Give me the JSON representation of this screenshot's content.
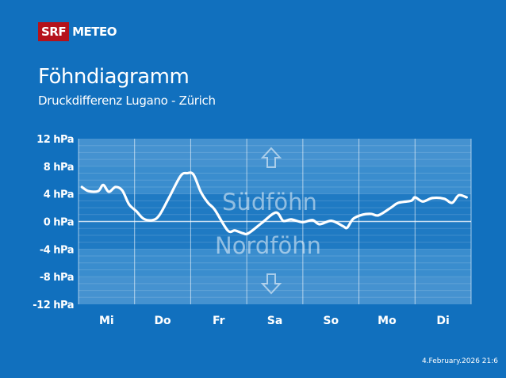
{
  "brand": {
    "srf": "SRF",
    "meteo": "METEO"
  },
  "header": {
    "title": "Föhndiagramm",
    "subtitle": "Druckdifferenz Lugano - Zürich"
  },
  "timestamp": "4.February.2026 21:6",
  "colors": {
    "background": "#1170be",
    "line": "#ffffff",
    "logo_red": "#b5121b"
  },
  "chart_data": {
    "type": "line",
    "title": "Föhndiagramm",
    "ylabel": "hPa",
    "ylim": [
      -12,
      12
    ],
    "yticks": [
      12,
      8,
      4,
      0,
      -4,
      -8,
      -12
    ],
    "ytick_labels": [
      "12 hPa",
      "8 hPa",
      "4 hPa",
      "0 hPa",
      "-4 hPa",
      "-8 hPa",
      "-12 hPa"
    ],
    "xlim": [
      0,
      7
    ],
    "categories": [
      "Mi",
      "Do",
      "Fr",
      "Sa",
      "So",
      "Mo",
      "Di"
    ],
    "annotations": {
      "upper": "Südföhn",
      "lower": "Nordföhn"
    },
    "series": [
      {
        "name": "Druckdifferenz",
        "x": [
          0.06,
          0.18,
          0.35,
          0.44,
          0.54,
          0.66,
          0.78,
          0.9,
          1.03,
          1.16,
          1.32,
          1.44,
          1.61,
          1.82,
          1.94,
          2.05,
          2.18,
          2.31,
          2.43,
          2.66,
          2.79,
          2.93,
          3.03,
          3.27,
          3.52,
          3.65,
          3.79,
          3.99,
          4.17,
          4.3,
          4.51,
          4.72,
          4.79,
          4.9,
          5.07,
          5.22,
          5.35,
          5.57,
          5.7,
          5.93,
          6.0,
          6.14,
          6.31,
          6.52,
          6.66,
          6.78,
          6.92
        ],
        "values": [
          5.0,
          4.4,
          4.4,
          5.3,
          4.3,
          5.0,
          4.5,
          2.5,
          1.5,
          0.4,
          0.2,
          0.9,
          3.4,
          6.6,
          7.0,
          6.8,
          4.3,
          2.7,
          1.7,
          -1.3,
          -1.3,
          -1.7,
          -1.7,
          -0.2,
          1.3,
          0.1,
          0.3,
          -0.1,
          0.2,
          -0.4,
          0.1,
          -0.7,
          -0.9,
          0.4,
          1.0,
          1.1,
          0.9,
          2.0,
          2.7,
          3.0,
          3.5,
          2.9,
          3.4,
          3.3,
          2.7,
          3.8,
          3.5
        ]
      }
    ]
  }
}
